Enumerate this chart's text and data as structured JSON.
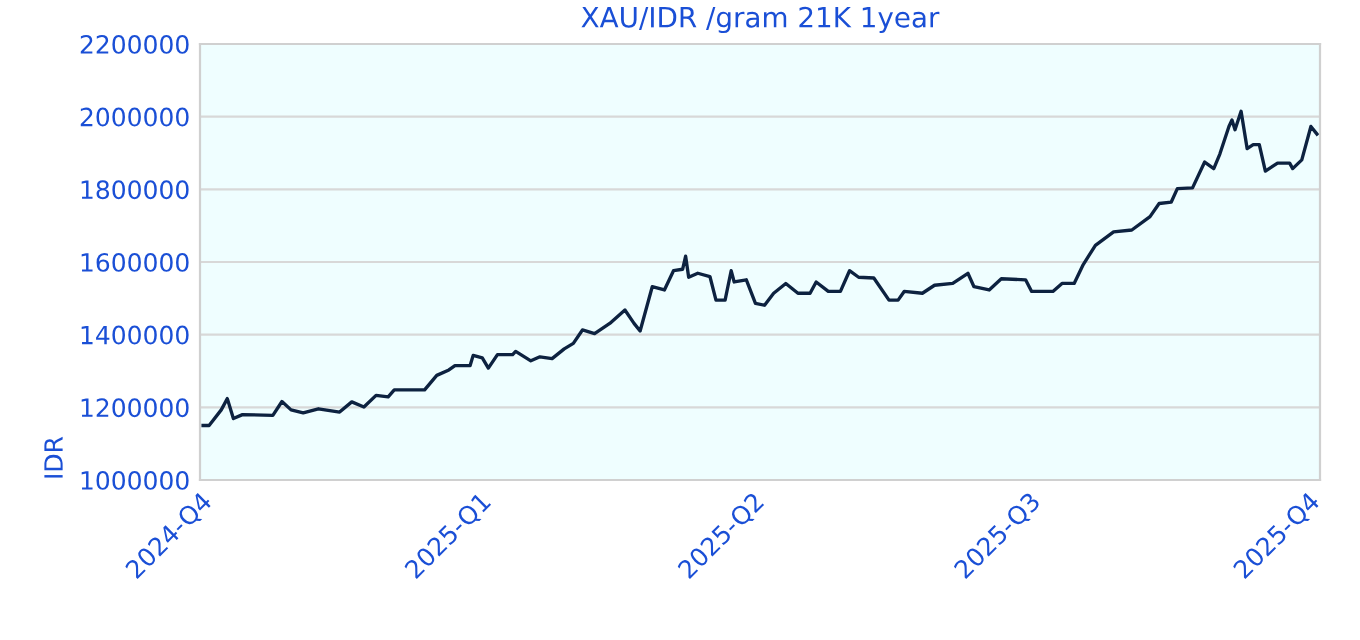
{
  "chart_data": {
    "type": "line",
    "title": "XAU/IDR /gram 21K 1year",
    "ylabel": "IDR",
    "x": [
      "2024-10-02",
      "2024-10-04",
      "2024-10-08",
      "2024-10-10",
      "2024-10-12",
      "2024-10-15",
      "2024-10-25",
      "2024-10-28",
      "2024-10-31",
      "2024-11-04",
      "2024-11-09",
      "2024-11-16",
      "2024-11-20",
      "2024-11-24",
      "2024-11-28",
      "2024-12-02",
      "2024-12-04",
      "2024-12-08",
      "2024-12-14",
      "2024-12-18",
      "2024-12-22",
      "2024-12-24",
      "2024-12-29",
      "2024-12-30",
      "2025-01-02",
      "2025-01-04",
      "2025-01-07",
      "2025-01-12",
      "2025-01-13",
      "2025-01-18",
      "2025-01-21",
      "2025-01-25",
      "2025-01-29",
      "2025-02-01",
      "2025-02-04",
      "2025-02-08",
      "2025-02-13",
      "2025-02-18",
      "2025-02-21",
      "2025-02-23",
      "2025-02-27",
      "2025-03-03",
      "2025-03-06",
      "2025-03-09",
      "2025-03-10",
      "2025-03-11",
      "2025-03-14",
      "2025-03-18",
      "2025-03-20",
      "2025-03-23",
      "2025-03-25",
      "2025-03-26",
      "2025-03-30",
      "2025-04-02",
      "2025-04-05",
      "2025-04-08",
      "2025-04-12",
      "2025-04-16",
      "2025-04-20",
      "2025-04-22",
      "2025-04-26",
      "2025-04-30",
      "2025-05-03",
      "2025-05-06",
      "2025-05-11",
      "2025-05-16",
      "2025-05-19",
      "2025-05-21",
      "2025-05-27",
      "2025-05-31",
      "2025-06-06",
      "2025-06-11",
      "2025-06-13",
      "2025-06-18",
      "2025-06-22",
      "2025-06-30",
      "2025-07-02",
      "2025-07-09",
      "2025-07-12",
      "2025-07-16",
      "2025-07-19",
      "2025-07-23",
      "2025-07-29",
      "2025-08-04",
      "2025-08-10",
      "2025-08-13",
      "2025-08-17",
      "2025-08-19",
      "2025-08-24",
      "2025-08-28",
      "2025-08-31",
      "2025-09-02",
      "2025-09-05",
      "2025-09-06",
      "2025-09-07",
      "2025-09-09",
      "2025-09-11",
      "2025-09-13",
      "2025-09-15",
      "2025-09-17",
      "2025-09-21",
      "2025-09-25",
      "2025-09-26",
      "2025-09-29",
      "2025-10-02",
      "2025-10-04"
    ],
    "series": [
      {
        "color": "#0d2240",
        "values": [
          1150000,
          1150000,
          1193000,
          1224000,
          1169000,
          1180000,
          1178000,
          1216000,
          1193000,
          1185000,
          1196000,
          1187000,
          1215000,
          1201000,
          1233000,
          1229000,
          1248000,
          1248000,
          1248000,
          1288000,
          1303000,
          1315000,
          1315000,
          1343000,
          1336000,
          1308000,
          1345000,
          1345000,
          1354000,
          1328000,
          1339000,
          1334000,
          1361000,
          1376000,
          1413000,
          1403000,
          1431000,
          1468000,
          1431000,
          1410000,
          1532000,
          1523000,
          1576000,
          1580000,
          1616000,
          1558000,
          1569000,
          1560000,
          1495000,
          1495000,
          1576000,
          1545000,
          1551000,
          1486000,
          1481000,
          1514000,
          1541000,
          1514000,
          1514000,
          1545000,
          1519000,
          1519000,
          1576000,
          1558000,
          1556000,
          1495000,
          1495000,
          1519000,
          1514000,
          1536000,
          1541000,
          1569000,
          1532000,
          1523000,
          1554000,
          1551000,
          1519000,
          1519000,
          1541000,
          1541000,
          1593000,
          1646000,
          1683000,
          1688000,
          1725000,
          1761000,
          1765000,
          1802000,
          1804000,
          1875000,
          1857000,
          1897000,
          1973000,
          1991000,
          1964000,
          2015000,
          1912000,
          1923000,
          1923000,
          1850000,
          1872000,
          1872000,
          1857000,
          1881000,
          1973000,
          1952000
        ]
      }
    ],
    "xlim": [
      "2024-10-01",
      "2025-10-05"
    ],
    "xticks": [
      {
        "value": "2024-10-01",
        "label": "2024-Q4"
      },
      {
        "value": "2025-01-01",
        "label": "2025-Q1"
      },
      {
        "value": "2025-04-01",
        "label": "2025-Q2"
      },
      {
        "value": "2025-07-01",
        "label": "2025-Q3"
      },
      {
        "value": "2025-10-01",
        "label": "2025-Q4"
      }
    ],
    "ylim": [
      1000000,
      2200000
    ],
    "yticks": [
      1000000,
      1200000,
      1400000,
      1600000,
      1800000,
      2000000,
      2200000
    ],
    "grid": "y",
    "marker": "none",
    "line_style": "solid"
  }
}
